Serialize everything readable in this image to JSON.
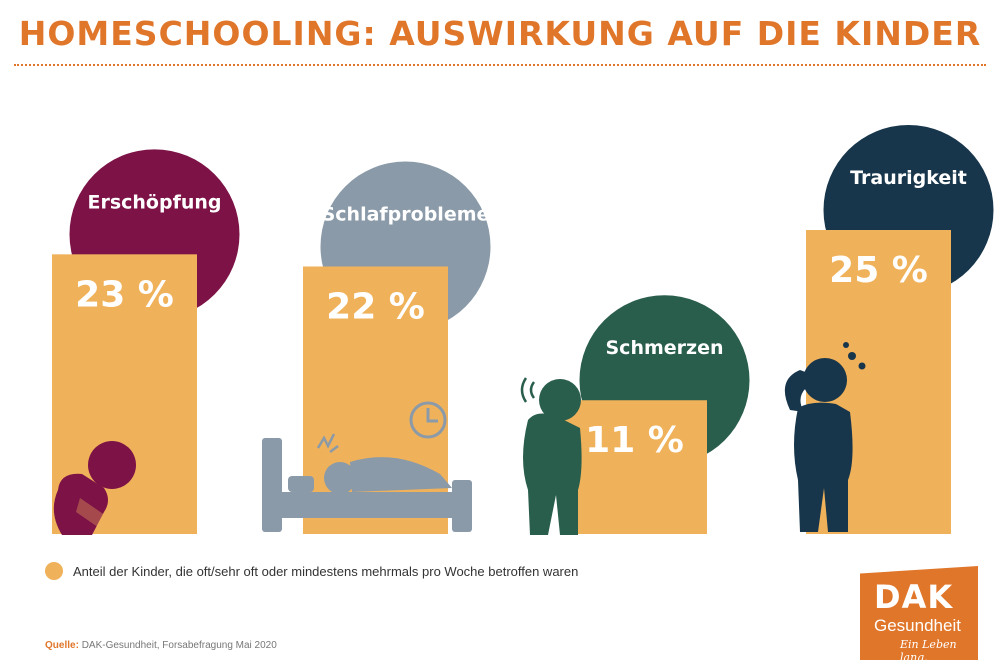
{
  "header": {
    "title": "HOMESCHOOLING: AUSWIRKUNG AUF DIE KINDER"
  },
  "colors": {
    "bar": "#f0b15b",
    "accent": "#e0762a"
  },
  "chart_data": {
    "type": "bar",
    "title": "HOMESCHOOLING: AUSWIRKUNG AUF DIE KINDER",
    "categories": [
      "Erschöpfung",
      "Schlafprobleme",
      "Schmerzen",
      "Traurigkeit"
    ],
    "values": [
      23,
      22,
      11,
      25
    ],
    "value_labels": [
      "23 %",
      "22 %",
      "11 %",
      "25 %"
    ],
    "circle_colors": [
      "#7d1246",
      "#8a9aa8",
      "#2a5e4c",
      "#17364b"
    ],
    "unit": "%",
    "ylim": [
      0,
      25
    ],
    "xlabel": "",
    "ylabel": ""
  },
  "legend": {
    "text": "Anteil der Kinder, die oft/sehr oft oder mindestens mehrmals pro Woche betroffen waren"
  },
  "source": {
    "label": "Quelle:",
    "text": "DAK-Gesundheit, Forsabefragung Mai 2020"
  },
  "logo": {
    "line1": "DAK",
    "line2": "Gesundheit",
    "slogan": "Ein Leben lang."
  }
}
